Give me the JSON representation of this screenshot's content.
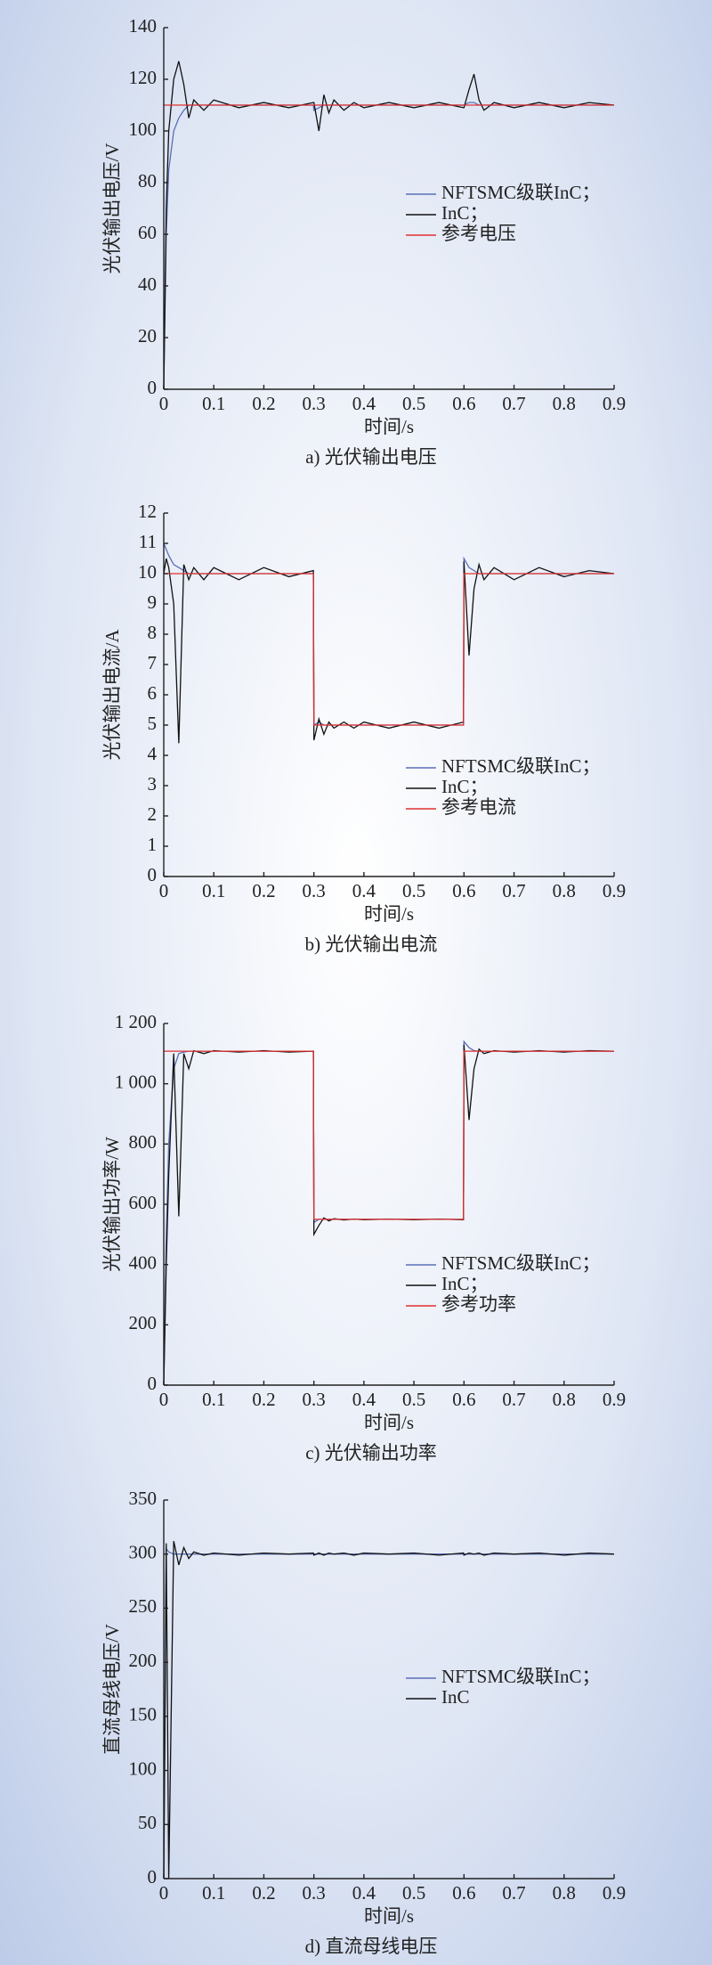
{
  "chart_data": [
    {
      "type": "line",
      "title": "a) 光伏输出电压",
      "xlabel": "时间/s",
      "ylabel": "光伏输出电压/V",
      "x": [
        0,
        0.005,
        0.01,
        0.02,
        0.03,
        0.04,
        0.05,
        0.06,
        0.08,
        0.1,
        0.15,
        0.2,
        0.25,
        0.299,
        0.3,
        0.31,
        0.32,
        0.33,
        0.34,
        0.36,
        0.38,
        0.4,
        0.45,
        0.5,
        0.55,
        0.599,
        0.6,
        0.61,
        0.62,
        0.63,
        0.64,
        0.66,
        0.7,
        0.75,
        0.8,
        0.85,
        0.9
      ],
      "series": [
        {
          "name": "NFTSMC级联InC；",
          "color": "#5a6fb8",
          "values": [
            0,
            60,
            85,
            100,
            105,
            108,
            110,
            110,
            110,
            110,
            110,
            110,
            110,
            110,
            108,
            109,
            110,
            110,
            110,
            110,
            110,
            110,
            110,
            110,
            110,
            110,
            110,
            111,
            111,
            110,
            110,
            110,
            110,
            110,
            110,
            110,
            110
          ]
        },
        {
          "name": "InC；",
          "color": "#111111",
          "values": [
            0,
            70,
            100,
            120,
            127,
            118,
            105,
            112,
            108,
            112,
            109,
            111,
            109,
            111,
            111,
            100,
            114,
            107,
            112,
            108,
            111,
            109,
            111,
            109,
            111,
            109,
            109,
            116,
            122,
            112,
            108,
            111,
            109,
            111,
            109,
            111,
            110
          ]
        },
        {
          "name": "参考电压",
          "color": "#e03030",
          "values": [
            110,
            110,
            110,
            110,
            110,
            110,
            110,
            110,
            110,
            110,
            110,
            110,
            110,
            110,
            110,
            110,
            110,
            110,
            110,
            110,
            110,
            110,
            110,
            110,
            110,
            110,
            110,
            110,
            110,
            110,
            110,
            110,
            110,
            110,
            110,
            110,
            110
          ]
        }
      ],
      "xlim": [
        0,
        0.9
      ],
      "xticks": [
        0,
        0.1,
        0.2,
        0.3,
        0.4,
        0.5,
        0.6,
        0.7,
        0.8,
        0.9
      ],
      "ylim": [
        0,
        140
      ],
      "yticks": [
        0,
        20,
        40,
        60,
        80,
        100,
        120,
        140
      ]
    },
    {
      "type": "line",
      "title": "b) 光伏输出电流",
      "xlabel": "时间/s",
      "ylabel": "光伏输出电流/A",
      "x": [
        0,
        0.005,
        0.01,
        0.02,
        0.03,
        0.04,
        0.05,
        0.06,
        0.08,
        0.1,
        0.15,
        0.2,
        0.25,
        0.299,
        0.3,
        0.31,
        0.32,
        0.33,
        0.34,
        0.36,
        0.38,
        0.4,
        0.45,
        0.5,
        0.55,
        0.599,
        0.6,
        0.61,
        0.62,
        0.63,
        0.64,
        0.66,
        0.7,
        0.75,
        0.8,
        0.85,
        0.9
      ],
      "series": [
        {
          "name": "NFTSMC级联InC；",
          "color": "#5a6fb8",
          "values": [
            11,
            10.8,
            10.6,
            10.3,
            10.2,
            10.1,
            10,
            10,
            10,
            10,
            10,
            10,
            10,
            10,
            5,
            5.1,
            5,
            5,
            5,
            5,
            5,
            5,
            5,
            5,
            5,
            5,
            10.5,
            10.2,
            10.1,
            10,
            10,
            10,
            10,
            10,
            10,
            10,
            10
          ]
        },
        {
          "name": "InC；",
          "color": "#111111",
          "values": [
            10,
            10.5,
            10.2,
            9,
            4.4,
            10.3,
            9.8,
            10.2,
            9.8,
            10.2,
            9.8,
            10.2,
            9.9,
            10.1,
            4.5,
            5.2,
            4.7,
            5.1,
            4.9,
            5.1,
            4.9,
            5.1,
            4.9,
            5.1,
            4.9,
            5.1,
            10.4,
            7.3,
            9.5,
            10.3,
            9.8,
            10.2,
            9.8,
            10.2,
            9.9,
            10.1,
            10
          ]
        },
        {
          "name": "参考电流",
          "color": "#e03030",
          "values": [
            10,
            10,
            10,
            10,
            10,
            10,
            10,
            10,
            10,
            10,
            10,
            10,
            10,
            10,
            5,
            5,
            5,
            5,
            5,
            5,
            5,
            5,
            5,
            5,
            5,
            5,
            10,
            10,
            10,
            10,
            10,
            10,
            10,
            10,
            10,
            10,
            10
          ]
        }
      ],
      "xlim": [
        0,
        0.9
      ],
      "xticks": [
        0,
        0.1,
        0.2,
        0.3,
        0.4,
        0.5,
        0.6,
        0.7,
        0.8,
        0.9
      ],
      "ylim": [
        0,
        12
      ],
      "yticks": [
        0,
        1,
        2,
        3,
        4,
        5,
        6,
        7,
        8,
        9,
        10,
        11,
        12
      ]
    },
    {
      "type": "line",
      "title": "c) 光伏输出功率",
      "xlabel": "时间/s",
      "ylabel": "光伏输出功率/W",
      "x": [
        0,
        0.005,
        0.01,
        0.02,
        0.03,
        0.04,
        0.05,
        0.06,
        0.08,
        0.1,
        0.15,
        0.2,
        0.25,
        0.299,
        0.3,
        0.31,
        0.32,
        0.33,
        0.34,
        0.36,
        0.38,
        0.4,
        0.45,
        0.5,
        0.55,
        0.599,
        0.6,
        0.61,
        0.62,
        0.63,
        0.64,
        0.66,
        0.7,
        0.75,
        0.8,
        0.85,
        0.9
      ],
      "series": [
        {
          "name": "NFTSMC级联InC；",
          "color": "#5a6fb8",
          "values": [
            0,
            500,
            800,
            1050,
            1100,
            1105,
            1108,
            1108,
            1108,
            1108,
            1108,
            1108,
            1108,
            1108,
            540,
            550,
            550,
            550,
            550,
            550,
            550,
            550,
            550,
            550,
            550,
            550,
            1140,
            1120,
            1110,
            1108,
            1108,
            1108,
            1108,
            1108,
            1108,
            1108,
            1108
          ]
        },
        {
          "name": "InC；",
          "color": "#111111",
          "values": [
            0,
            400,
            700,
            1100,
            560,
            1100,
            1050,
            1110,
            1100,
            1110,
            1105,
            1110,
            1105,
            1108,
            500,
            530,
            555,
            545,
            552,
            548,
            551,
            549,
            551,
            549,
            551,
            549,
            1130,
            880,
            1050,
            1115,
            1100,
            1110,
            1105,
            1110,
            1105,
            1110,
            1108
          ]
        },
        {
          "name": "参考功率",
          "color": "#e03030",
          "values": [
            1108,
            1108,
            1108,
            1108,
            1108,
            1108,
            1108,
            1108,
            1108,
            1108,
            1108,
            1108,
            1108,
            1108,
            550,
            550,
            550,
            550,
            550,
            550,
            550,
            550,
            550,
            550,
            550,
            550,
            1108,
            1108,
            1108,
            1108,
            1108,
            1108,
            1108,
            1108,
            1108,
            1108,
            1108
          ]
        }
      ],
      "xlim": [
        0,
        0.9
      ],
      "xticks": [
        0,
        0.1,
        0.2,
        0.3,
        0.4,
        0.5,
        0.6,
        0.7,
        0.8,
        0.9
      ],
      "ylim": [
        0,
        1200
      ],
      "yticks": [
        0,
        200,
        400,
        600,
        800,
        {
          "value": 1000,
          "label": "1 000"
        },
        {
          "value": 1200,
          "label": "1 200"
        }
      ]
    },
    {
      "type": "line",
      "title": "d) 直流母线电压",
      "xlabel": "时间/s",
      "ylabel": "直流母线电压/V",
      "x": [
        0,
        0.005,
        0.01,
        0.02,
        0.03,
        0.04,
        0.05,
        0.06,
        0.08,
        0.1,
        0.15,
        0.2,
        0.25,
        0.299,
        0.3,
        0.31,
        0.32,
        0.33,
        0.34,
        0.36,
        0.38,
        0.4,
        0.45,
        0.5,
        0.55,
        0.599,
        0.6,
        0.61,
        0.62,
        0.63,
        0.64,
        0.66,
        0.7,
        0.75,
        0.8,
        0.85,
        0.9
      ],
      "series": [
        {
          "name": "NFTSMC级联InC；",
          "color": "#5a6fb8",
          "values": [
            0,
            305,
            302,
            300,
            300,
            300,
            300,
            300,
            300,
            300,
            300,
            300,
            300,
            300,
            300,
            300,
            300,
            300,
            300,
            300,
            300,
            300,
            300,
            300,
            300,
            300,
            300,
            300,
            300,
            300,
            300,
            300,
            300,
            300,
            300,
            300,
            300
          ]
        },
        {
          "name": "InC",
          "color": "#111111",
          "values": [
            0,
            310,
            0,
            312,
            290,
            306,
            296,
            302,
            299,
            301,
            299,
            301,
            300,
            301,
            299,
            301,
            299,
            301,
            300,
            301,
            299,
            301,
            300,
            301,
            299,
            301,
            299,
            301,
            300,
            301,
            299,
            301,
            300,
            301,
            299,
            301,
            300
          ]
        }
      ],
      "xlim": [
        0,
        0.9
      ],
      "xticks": [
        0,
        0.1,
        0.2,
        0.3,
        0.4,
        0.5,
        0.6,
        0.7,
        0.8,
        0.9
      ],
      "ylim": [
        0,
        350
      ],
      "yticks": [
        0,
        50,
        100,
        150,
        200,
        250,
        300,
        350
      ]
    }
  ]
}
